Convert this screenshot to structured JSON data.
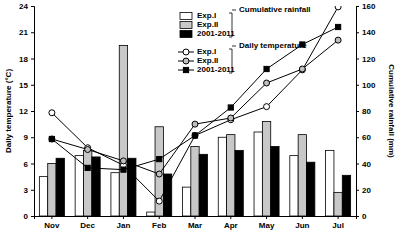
{
  "chart_data": {
    "type": "bar",
    "categories": [
      "Nov",
      "Dec",
      "Jan",
      "Feb",
      "Mar",
      "Apr",
      "May",
      "Jun",
      "Jul"
    ],
    "y_label": "Daily temperature (°C)",
    "y2_label": "Cumulative rainfall (mm)",
    "ylim": [
      0,
      24
    ],
    "yticks": [
      0,
      3,
      6,
      9,
      12,
      15,
      18,
      21,
      24
    ],
    "y2lim": [
      0,
      160
    ],
    "y2ticks": [
      0,
      20,
      40,
      60,
      80,
      100,
      120,
      140,
      160
    ],
    "annotations": [
      "Cumulative rainfall",
      "Daily temperature"
    ],
    "legend": "top",
    "series": [
      {
        "name": "Exp.I",
        "type": "bar",
        "axis": "y2",
        "color": "#ffffff",
        "values": [
          30,
          46,
          33,
          3,
          22,
          60,
          64,
          46,
          50
        ]
      },
      {
        "name": "Exp.II",
        "type": "bar",
        "axis": "y2",
        "color": "#c8c8c8",
        "values": [
          40,
          50,
          130,
          68,
          53,
          62,
          72,
          62,
          18
        ]
      },
      {
        "name": "2001-2011",
        "type": "bar",
        "axis": "y2",
        "color": "#000000",
        "values": [
          44,
          45,
          44,
          32,
          47,
          50,
          53,
          41,
          31
        ]
      },
      {
        "name": "Exp.I",
        "type": "line",
        "color": "#ffffff",
        "marker": "circle",
        "values": [
          11.8,
          7.8,
          5.8,
          1.7,
          9.2,
          11.0,
          12.5,
          16.7,
          23.9
        ]
      },
      {
        "name": "Exp.II",
        "type": "line",
        "color": "#bfbfbf",
        "marker": "circle",
        "values": [
          8.8,
          7.6,
          6.3,
          4.8,
          10.5,
          11.2,
          15.2,
          16.8,
          20.1
        ]
      },
      {
        "name": "2001-2011",
        "type": "line",
        "color": "#000000",
        "marker": "square",
        "values": [
          8.8,
          5.5,
          5.3,
          6.5,
          9.2,
          12.4,
          16.8,
          19.6,
          21.6
        ]
      }
    ]
  }
}
